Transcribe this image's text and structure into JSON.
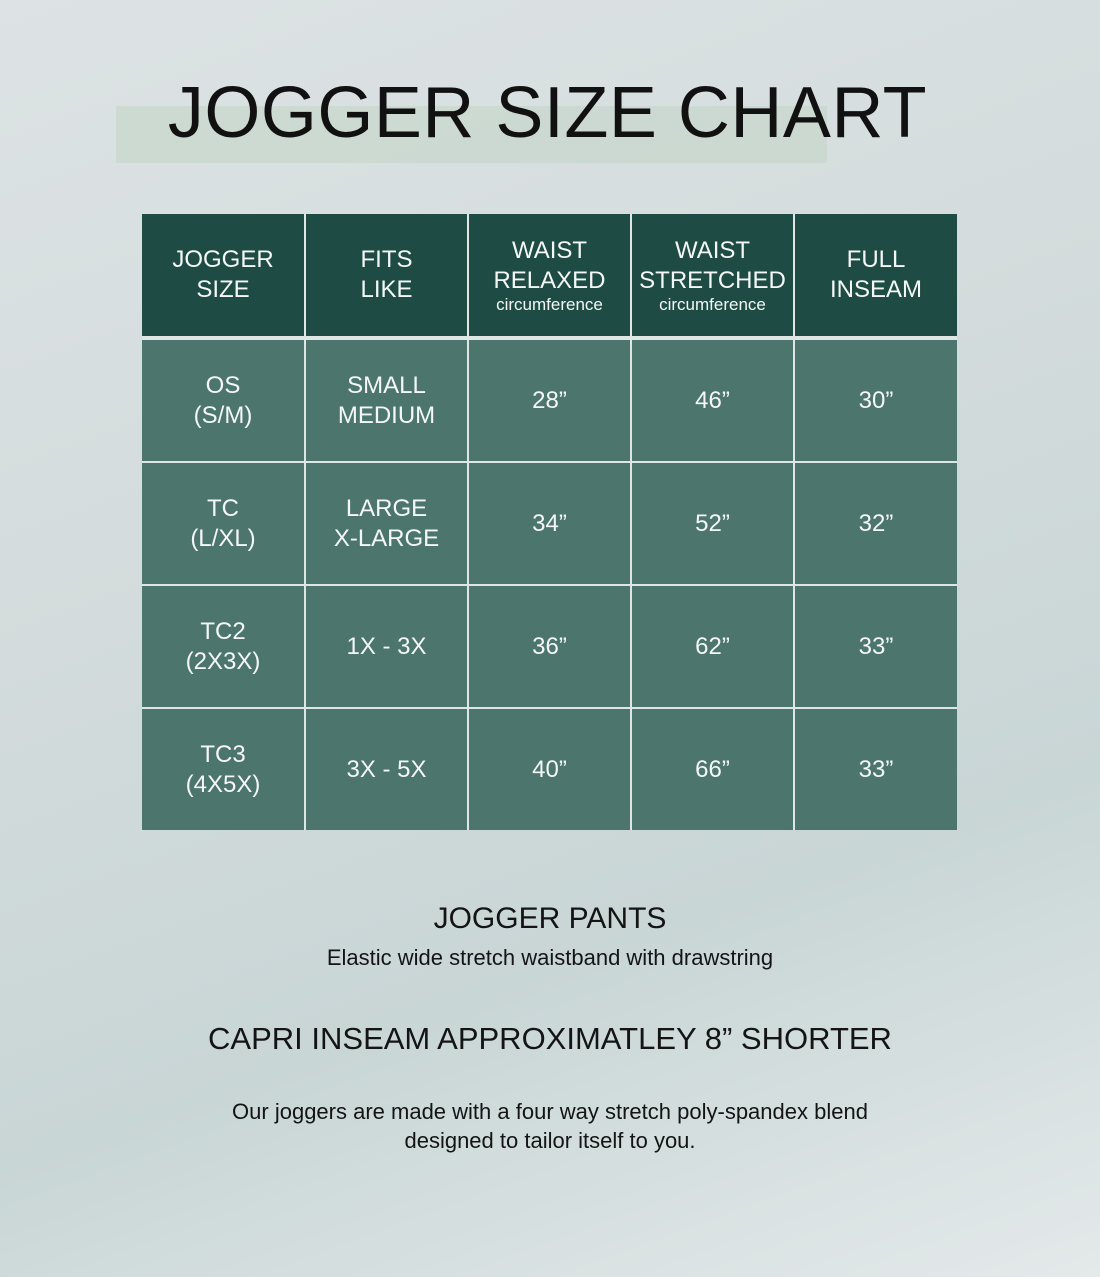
{
  "title": "JOGGER SIZE CHART",
  "colors": {
    "header_bg": "#1e4c44",
    "cell_bg": "#4b756d",
    "highlight": "#c9d8cf"
  },
  "table": {
    "headers": [
      {
        "line1": "JOGGER",
        "line2": "SIZE",
        "sub": ""
      },
      {
        "line1": "FITS",
        "line2": "LIKE",
        "sub": ""
      },
      {
        "line1": "WAIST",
        "line2": "RELAXED",
        "sub": "circumference"
      },
      {
        "line1": "WAIST",
        "line2": "STRETCHED",
        "sub": "circumference"
      },
      {
        "line1": "FULL",
        "line2": "INSEAM",
        "sub": ""
      }
    ],
    "rows": [
      {
        "size": "OS",
        "size_alt": "(S/M)",
        "fits1": "SMALL",
        "fits2": "MEDIUM",
        "relaxed": "28”",
        "stretched": "46”",
        "inseam": "30”"
      },
      {
        "size": "TC",
        "size_alt": "(L/XL)",
        "fits1": "LARGE",
        "fits2": "X-LARGE",
        "relaxed": "34”",
        "stretched": "52”",
        "inseam": "32”"
      },
      {
        "size": "TC2",
        "size_alt": "(2X3X)",
        "fits1": "1X - 3X",
        "fits2": "",
        "relaxed": "36”",
        "stretched": "62”",
        "inseam": "33”"
      },
      {
        "size": "TC3",
        "size_alt": "(4X5X)",
        "fits1": "3X - 5X",
        "fits2": "",
        "relaxed": "40”",
        "stretched": "66”",
        "inseam": "33”"
      }
    ]
  },
  "pants": {
    "heading": "JOGGER PANTS",
    "desc": "Elastic wide stretch waistband with drawstring"
  },
  "capri": "CAPRI INSEAM APPROXIMATLEY 8” SHORTER",
  "fabric": {
    "line1": "Our joggers are made with a four way stretch poly-spandex blend",
    "line2": "designed to tailor itself to you."
  }
}
